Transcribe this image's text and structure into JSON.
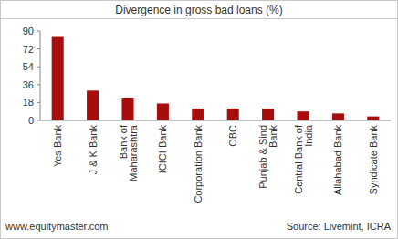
{
  "chart_data": {
    "type": "bar",
    "title": "Divergence in gross bad loans (%)",
    "categories": [
      "Yes Bank",
      "J & K Bank",
      "Bank of Maharashtra",
      "ICICI Bank",
      "Corporation Bank",
      "OBC",
      "Punjab & Sind Bank",
      "Central Bank of India",
      "Allahabad Bank",
      "Syndicate Bank"
    ],
    "values": [
      84,
      30,
      23,
      17,
      12,
      12,
      12,
      9,
      7,
      4
    ],
    "color": "#a80d0d",
    "ylim": [
      0,
      90
    ],
    "yticks": [
      0,
      18,
      36,
      54,
      72,
      90
    ],
    "grid": false,
    "footer_left": "www.equitymaster.com",
    "source": "Source: Livemint, ICRA"
  }
}
